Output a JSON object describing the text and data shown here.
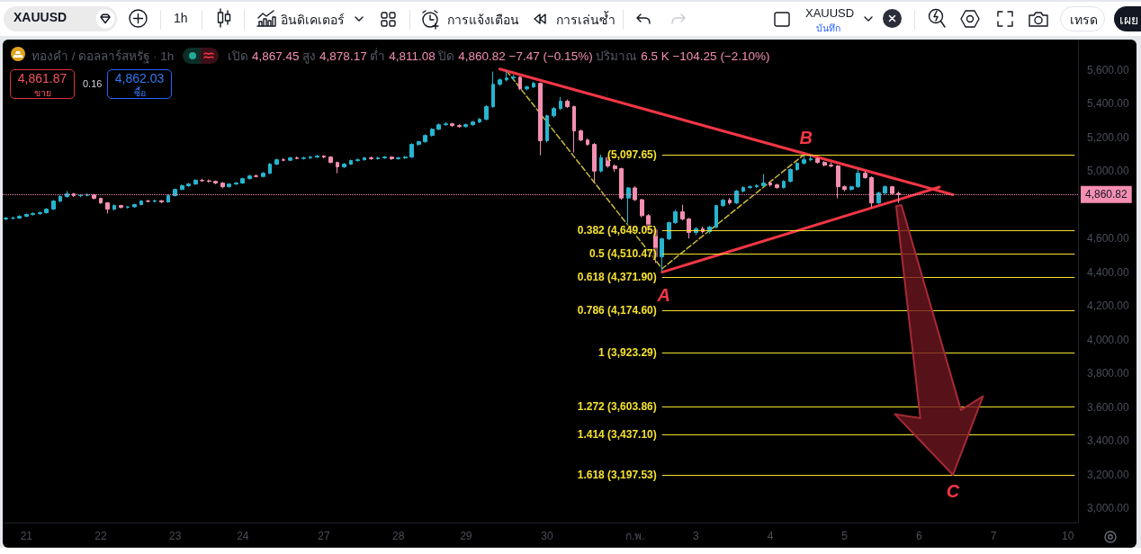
{
  "chart_data": {
    "type": "candlestick",
    "title": "ทองคำ / ดอลลาร์สหรัฐ · 1h",
    "subtitle": "เปิด 4,867.45 สูง 4,878.17 ต่ำ 4,811.08 ปิด 4,860.82 −7.47 (−0.15%) ปริมาณ 6.5 K −104.25 (−2.10%)",
    "categories": [
      null,
      null,
      null,
      "21",
      null,
      null,
      null,
      null,
      null,
      null,
      null,
      null,
      null,
      null,
      "22",
      null,
      null,
      null,
      null,
      null,
      null,
      null,
      null,
      null,
      null,
      "23",
      null,
      null,
      null,
      null,
      null,
      null,
      null,
      null,
      null,
      "24",
      null,
      null,
      null,
      null,
      null,
      null,
      null,
      null,
      null,
      null,
      null,
      "27",
      null,
      null,
      null,
      null,
      null,
      null,
      null,
      null,
      null,
      null,
      "28",
      null,
      null,
      null,
      null,
      null,
      null,
      null,
      null,
      null,
      "29",
      null,
      null,
      null,
      null,
      null,
      null,
      null,
      null,
      null,
      null,
      null,
      "30",
      null,
      null,
      null,
      null,
      null,
      null,
      null,
      null,
      null,
      null,
      null,
      null,
      "ก.พ.",
      null,
      null,
      null,
      null,
      null,
      null,
      null,
      null,
      "3",
      null,
      null,
      null,
      null,
      null,
      null,
      null,
      null,
      null,
      null,
      "4",
      null,
      null,
      null,
      null,
      null,
      null,
      null,
      null,
      null,
      null,
      "5",
      null,
      null,
      null,
      null,
      null,
      null,
      null,
      null,
      null,
      null,
      "6",
      null,
      null,
      null,
      null,
      null,
      null,
      null,
      null,
      null,
      null,
      "7",
      null,
      null,
      null,
      null,
      null,
      null,
      null,
      null,
      null,
      null,
      "10",
      null
    ],
    "ohlc": [
      [
        4716,
        4728,
        4708,
        4721
      ],
      [
        4721,
        4730,
        4712,
        4721
      ],
      [
        4721,
        4738,
        4716,
        4732
      ],
      [
        4732,
        4748,
        4726,
        4742
      ],
      [
        4742,
        4755,
        4736,
        4748
      ],
      [
        4748,
        4760,
        4740,
        4753
      ],
      [
        4753,
        4780,
        4748,
        4774
      ],
      [
        4774,
        4828,
        4770,
        4822
      ],
      [
        4822,
        4856,
        4815,
        4849
      ],
      [
        4849,
        4881,
        4842,
        4865
      ],
      [
        4865,
        4870,
        4846,
        4854
      ],
      [
        4854,
        4862,
        4845,
        4856
      ],
      [
        4856,
        4868,
        4850,
        4859
      ],
      [
        4859,
        4864,
        4832,
        4838
      ],
      [
        4838,
        4842,
        4805,
        4811
      ],
      [
        4811,
        4816,
        4748,
        4774
      ],
      [
        4774,
        4802,
        4766,
        4795
      ],
      [
        4795,
        4800,
        4778,
        4785
      ],
      [
        4785,
        4792,
        4778,
        4788
      ],
      [
        4788,
        4806,
        4782,
        4801
      ],
      [
        4801,
        4828,
        4796,
        4822
      ],
      [
        4822,
        4830,
        4814,
        4820
      ],
      [
        4820,
        4830,
        4813,
        4824
      ],
      [
        4824,
        4828,
        4810,
        4817
      ],
      [
        4817,
        4860,
        4812,
        4854
      ],
      [
        4854,
        4896,
        4850,
        4891
      ],
      [
        4891,
        4920,
        4886,
        4913
      ],
      [
        4913,
        4930,
        4906,
        4923
      ],
      [
        4923,
        4952,
        4918,
        4945
      ],
      [
        4945,
        4955,
        4936,
        4942
      ],
      [
        4942,
        4950,
        4932,
        4939
      ],
      [
        4939,
        4944,
        4922,
        4929
      ],
      [
        4929,
        4934,
        4898,
        4907
      ],
      [
        4907,
        4928,
        4902,
        4923
      ],
      [
        4923,
        4935,
        4918,
        4929
      ],
      [
        4929,
        4960,
        4924,
        4955
      ],
      [
        4955,
        4978,
        4950,
        4971
      ],
      [
        4971,
        4980,
        4962,
        4968
      ],
      [
        4968,
        4994,
        4962,
        4987
      ],
      [
        4987,
        5048,
        4982,
        5041
      ],
      [
        5041,
        5074,
        5036,
        5067
      ],
      [
        5067,
        5076,
        5058,
        5064
      ],
      [
        5064,
        5084,
        5060,
        5078
      ],
      [
        5078,
        5086,
        5070,
        5075
      ],
      [
        5075,
        5085,
        5068,
        5078
      ],
      [
        5078,
        5090,
        5072,
        5083
      ],
      [
        5083,
        5096,
        5078,
        5089
      ],
      [
        5089,
        5094,
        5076,
        5083
      ],
      [
        5083,
        5088,
        5046,
        5051
      ],
      [
        5051,
        5056,
        4987,
        5025
      ],
      [
        5025,
        5048,
        5018,
        5041
      ],
      [
        5041,
        5068,
        5036,
        5062
      ],
      [
        5062,
        5074,
        5056,
        5067
      ],
      [
        5067,
        5084,
        5062,
        5078
      ],
      [
        5078,
        5086,
        5066,
        5073
      ],
      [
        5073,
        5085,
        5068,
        5078
      ],
      [
        5078,
        5090,
        5072,
        5083
      ],
      [
        5083,
        5088,
        5066,
        5073
      ],
      [
        5073,
        5084,
        5068,
        5078
      ],
      [
        5078,
        5090,
        5072,
        5083
      ],
      [
        5083,
        5165,
        5078,
        5158
      ],
      [
        5158,
        5180,
        5150,
        5174
      ],
      [
        5174,
        5218,
        5168,
        5211
      ],
      [
        5211,
        5255,
        5205,
        5248
      ],
      [
        5248,
        5282,
        5242,
        5275
      ],
      [
        5275,
        5290,
        5268,
        5280
      ],
      [
        5280,
        5286,
        5262,
        5270
      ],
      [
        5270,
        5278,
        5256,
        5264
      ],
      [
        5264,
        5282,
        5258,
        5275
      ],
      [
        5275,
        5298,
        5268,
        5291
      ],
      [
        5291,
        5315,
        5284,
        5307
      ],
      [
        5307,
        5392,
        5300,
        5382
      ],
      [
        5382,
        5590,
        5375,
        5515
      ],
      [
        5515,
        5550,
        5505,
        5541
      ],
      [
        5541,
        5595,
        5532,
        5552
      ],
      [
        5552,
        5570,
        5540,
        5557
      ],
      [
        5557,
        5562,
        5480,
        5488
      ],
      [
        5488,
        5506,
        5478,
        5499
      ],
      [
        5499,
        5530,
        5492,
        5520
      ],
      [
        5520,
        5526,
        5094,
        5180
      ],
      [
        5180,
        5335,
        5170,
        5328
      ],
      [
        5328,
        5380,
        5318,
        5371
      ],
      [
        5371,
        5440,
        5362,
        5414
      ],
      [
        5414,
        5425,
        5374,
        5382
      ],
      [
        5382,
        5388,
        5110,
        5238
      ],
      [
        5238,
        5246,
        5176,
        5184
      ],
      [
        5184,
        5192,
        5150,
        5158
      ],
      [
        5158,
        5166,
        4934,
        5000
      ],
      [
        5000,
        5098,
        4992,
        5080
      ],
      [
        5080,
        5088,
        5020,
        5030
      ],
      [
        5030,
        5040,
        4996,
        5014
      ],
      [
        5014,
        5020,
        4830,
        4840
      ],
      [
        4840,
        4905,
        4690,
        4900
      ],
      [
        4900,
        4910,
        4822,
        4830
      ],
      [
        4830,
        4836,
        4726,
        4735
      ],
      [
        4735,
        4745,
        4636,
        4652
      ],
      [
        4652,
        4660,
        4455,
        4492
      ],
      [
        4492,
        4605,
        4405,
        4598
      ],
      [
        4598,
        4700,
        4590,
        4694
      ],
      [
        4694,
        4770,
        4686,
        4758
      ],
      [
        4758,
        4800,
        4708,
        4716
      ],
      [
        4716,
        4722,
        4600,
        4636
      ],
      [
        4636,
        4668,
        4620,
        4657
      ],
      [
        4657,
        4670,
        4630,
        4641
      ],
      [
        4641,
        4675,
        4628,
        4668
      ],
      [
        4668,
        4800,
        4660,
        4795
      ],
      [
        4795,
        4835,
        4786,
        4827
      ],
      [
        4827,
        4840,
        4800,
        4811
      ],
      [
        4811,
        4888,
        4804,
        4881
      ],
      [
        4881,
        4910,
        4874,
        4902
      ],
      [
        4902,
        4915,
        4895,
        4907
      ],
      [
        4907,
        4922,
        4900,
        4913
      ],
      [
        4913,
        4982,
        4906,
        4929
      ],
      [
        4929,
        4936,
        4908,
        4918
      ],
      [
        4918,
        4925,
        4895,
        4902
      ],
      [
        4902,
        4946,
        4896,
        4939
      ],
      [
        4939,
        5016,
        4932,
        5009
      ],
      [
        5009,
        5052,
        5002,
        5046
      ],
      [
        5046,
        5098,
        5040,
        5067
      ],
      [
        5067,
        5090,
        5058,
        5073
      ],
      [
        5073,
        5080,
        5044,
        5051
      ],
      [
        5051,
        5060,
        5028,
        5035
      ],
      [
        5035,
        5050,
        5022,
        5030
      ],
      [
        5030,
        5036,
        4838,
        4907
      ],
      [
        4907,
        4915,
        4880,
        4891
      ],
      [
        4891,
        4912,
        4884,
        4907
      ],
      [
        4907,
        5012,
        4900,
        4987
      ],
      [
        4987,
        5000,
        4954,
        4961
      ],
      [
        4961,
        4968,
        4785,
        4811
      ],
      [
        4811,
        4878,
        4804,
        4870
      ],
      [
        4870,
        4915,
        4862,
        4907
      ],
      [
        4907,
        4912,
        4860,
        4867
      ],
      [
        4867.45,
        4878.17,
        4811.08,
        4860.82
      ],
      null,
      null,
      null,
      null,
      null,
      null,
      null,
      null,
      null,
      null,
      null,
      null,
      null,
      null,
      null,
      null,
      null,
      null,
      null,
      null,
      null,
      null,
      null,
      null,
      null,
      null
    ],
    "colors": [
      "#26b5cf",
      "#26b5cf",
      "#26b5cf",
      "#26b5cf",
      "#26b5cf",
      "#26b5cf",
      "#26b5cf",
      "#26b5cf",
      "#26b5cf",
      "#26b5cf",
      "#f48fb1",
      "#26b5cf",
      "#26b5cf",
      "#f48fb1",
      "#f48fb1",
      "#f48fb1",
      "#26b5cf",
      "#f48fb1",
      "#26b5cf",
      "#26b5cf",
      "#26b5cf",
      "#f48fb1",
      "#26b5cf",
      "#f48fb1",
      "#26b5cf",
      "#26b5cf",
      "#26b5cf",
      "#26b5cf",
      "#26b5cf",
      "#f48fb1",
      "#f48fb1",
      "#f48fb1",
      "#f48fb1",
      "#26b5cf",
      "#26b5cf",
      "#26b5cf",
      "#26b5cf",
      "#f48fb1",
      "#26b5cf",
      "#26b5cf",
      "#26b5cf",
      "#f48fb1",
      "#26b5cf",
      "#f48fb1",
      "#26b5cf",
      "#26b5cf",
      "#26b5cf",
      "#f48fb1",
      "#f48fb1",
      "#f48fb1",
      "#26b5cf",
      "#26b5cf",
      "#26b5cf",
      "#26b5cf",
      "#f48fb1",
      "#26b5cf",
      "#26b5cf",
      "#f48fb1",
      "#26b5cf",
      "#26b5cf",
      "#26b5cf",
      "#26b5cf",
      "#26b5cf",
      "#26b5cf",
      "#26b5cf",
      "#26b5cf",
      "#f48fb1",
      "#f48fb1",
      "#26b5cf",
      "#26b5cf",
      "#26b5cf",
      "#26b5cf",
      "#26b5cf",
      "#26b5cf",
      "#26b5cf",
      "#26b5cf",
      "#f48fb1",
      "#26b5cf",
      "#26b5cf",
      "#f48fb1",
      "#26b5cf",
      "#26b5cf",
      "#26b5cf",
      "#f48fb1",
      "#f48fb1",
      "#f48fb1",
      "#f48fb1",
      "#f48fb1",
      "#26b5cf",
      "#f48fb1",
      "#f48fb1",
      "#f48fb1",
      "#26b5cf",
      "#f48fb1",
      "#f48fb1",
      "#f48fb1",
      "#f48fb1",
      "#26b5cf",
      "#26b5cf",
      "#26b5cf",
      "#f48fb1",
      "#f48fb1",
      "#26b5cf",
      "#f48fb1",
      "#26b5cf",
      "#26b5cf",
      "#26b5cf",
      "#f48fb1",
      "#26b5cf",
      "#26b5cf",
      "#26b5cf",
      "#26b5cf",
      "#26b5cf",
      "#f48fb1",
      "#f48fb1",
      "#26b5cf",
      "#26b5cf",
      "#26b5cf",
      "#26b5cf",
      "#26b5cf",
      "#f48fb1",
      "#f48fb1",
      "#f48fb1",
      "#f48fb1",
      "#f48fb1",
      "#26b5cf",
      "#26b5cf",
      "#f48fb1",
      "#f48fb1",
      "#26b5cf",
      "#26b5cf",
      "#f48fb1",
      "#f48fb1",
      null,
      null,
      null,
      null,
      null,
      null,
      null,
      null,
      null,
      null,
      null,
      null,
      null,
      null,
      null,
      null,
      null,
      null,
      null,
      null,
      null,
      null,
      null,
      null,
      null,
      null
    ],
    "series": [
      {
        "type": "line",
        "color": "#f23645",
        "line_style": "solid",
        "values": [
          null,
          null,
          null,
          null,
          null,
          null,
          null,
          null,
          null,
          null,
          null,
          null,
          null,
          null,
          null,
          null,
          null,
          null,
          null,
          null,
          null,
          null,
          null,
          null,
          null,
          null,
          null,
          null,
          null,
          null,
          null,
          null,
          null,
          null,
          null,
          null,
          null,
          null,
          null,
          null,
          null,
          null,
          null,
          null,
          null,
          null,
          null,
          null,
          null,
          null,
          null,
          null,
          null,
          null,
          null,
          null,
          null,
          null,
          null,
          null,
          null,
          null,
          null,
          null,
          null,
          null,
          null,
          null,
          null,
          null,
          null,
          null,
          null,
          5605,
          null,
          null,
          null,
          null,
          null,
          null,
          null,
          null,
          null,
          null,
          null,
          null,
          null,
          null,
          null,
          null,
          null,
          null,
          null,
          null,
          null,
          null,
          null,
          null,
          null,
          null,
          null,
          null,
          null,
          null,
          null,
          null,
          null,
          null,
          null,
          null,
          null,
          null,
          null,
          null,
          null,
          null,
          null,
          null,
          null,
          null,
          null,
          null,
          null,
          null,
          null,
          null,
          null,
          null,
          null,
          null,
          null,
          null,
          null,
          null,
          null,
          null,
          null,
          null,
          null,
          null,
          4860,
          null,
          null,
          null,
          null,
          null,
          null,
          null,
          null,
          null,
          null,
          null,
          null,
          null,
          null,
          null,
          null,
          null,
          null
        ]
      },
      {
        "type": "line",
        "color": "#f23645",
        "line_style": "solid",
        "values": [
          null,
          null,
          null,
          null,
          null,
          null,
          null,
          null,
          null,
          null,
          null,
          null,
          null,
          null,
          null,
          null,
          null,
          null,
          null,
          null,
          null,
          null,
          null,
          null,
          null,
          null,
          null,
          null,
          null,
          null,
          null,
          null,
          null,
          null,
          null,
          null,
          null,
          null,
          null,
          null,
          null,
          null,
          null,
          null,
          null,
          null,
          null,
          null,
          null,
          null,
          null,
          null,
          null,
          null,
          null,
          null,
          null,
          null,
          null,
          null,
          null,
          null,
          null,
          null,
          null,
          null,
          null,
          null,
          null,
          null,
          null,
          null,
          null,
          null,
          null,
          null,
          null,
          null,
          null,
          null,
          null,
          null,
          null,
          null,
          null,
          null,
          null,
          null,
          null,
          null,
          null,
          null,
          null,
          null,
          null,
          null,
          null,
          4400,
          null,
          null,
          null,
          null,
          null,
          null,
          null,
          null,
          null,
          null,
          null,
          null,
          null,
          null,
          null,
          null,
          null,
          null,
          null,
          null,
          null,
          null,
          null,
          null,
          null,
          null,
          null,
          null,
          null,
          null,
          null,
          null,
          null,
          null,
          null,
          null,
          null,
          null,
          null,
          null,
          4905,
          null,
          null,
          null,
          null,
          null,
          null,
          null,
          null,
          null,
          null,
          null,
          null,
          null,
          null,
          null,
          null,
          null,
          null,
          null,
          null
        ]
      },
      {
        "type": "line",
        "color": "#c9b93a",
        "line_style": "dashed",
        "values": [
          null,
          null,
          null,
          null,
          null,
          null,
          null,
          null,
          null,
          null,
          null,
          null,
          null,
          null,
          null,
          null,
          null,
          null,
          null,
          null,
          null,
          null,
          null,
          null,
          null,
          null,
          null,
          null,
          null,
          null,
          null,
          null,
          null,
          null,
          null,
          null,
          null,
          null,
          null,
          null,
          null,
          null,
          null,
          null,
          null,
          null,
          null,
          null,
          null,
          null,
          null,
          null,
          null,
          null,
          null,
          null,
          null,
          null,
          null,
          null,
          null,
          null,
          null,
          null,
          null,
          null,
          null,
          null,
          null,
          null,
          null,
          null,
          null,
          null,
          5595,
          null,
          null,
          null,
          null,
          null,
          null,
          null,
          null,
          null,
          null,
          null,
          null,
          null,
          null,
          null,
          null,
          null,
          null,
          null,
          null,
          null,
          null,
          4421,
          null,
          null,
          null,
          null,
          null,
          null,
          null,
          null,
          null,
          null,
          null,
          null,
          null,
          null,
          null,
          null,
          null,
          null,
          null,
          null,
          5098,
          null,
          null,
          null,
          null,
          null,
          null,
          null,
          null,
          null,
          null,
          null,
          null,
          null,
          null,
          null,
          null,
          null,
          null,
          null,
          null,
          null,
          null,
          null,
          null,
          null,
          null,
          null,
          null,
          null,
          null,
          null,
          null,
          null,
          null,
          null,
          null,
          null,
          null,
          null,
          null
        ]
      }
    ],
    "ylim": [
      2915,
      5780
    ],
    "yticks": [
      {
        "value": 3000,
        "label": "3,000.00"
      },
      {
        "value": 3200,
        "label": "3,200.00"
      },
      {
        "value": 3400,
        "label": "3,400.00"
      },
      {
        "value": 3600,
        "label": "3,600.00"
      },
      {
        "value": 3800,
        "label": "3,800.00"
      },
      {
        "value": 4000,
        "label": "4,000.00"
      },
      {
        "value": 4200,
        "label": "4,200.00"
      },
      {
        "value": 4400,
        "label": "4,400.00"
      },
      {
        "value": 4600,
        "label": "4,600.00"
      },
      {
        "value": 5000,
        "label": "5,000.00"
      },
      {
        "value": 5200,
        "label": "5,200.00"
      },
      {
        "value": 5400,
        "label": "5,400.00"
      },
      {
        "value": 5600,
        "label": "5,600.00"
      }
    ],
    "ref_lines": [
      {
        "axis": "y",
        "value": 5097.65,
        "label": "(5,097.65)",
        "color": "#f5e130"
      },
      {
        "axis": "y",
        "value": 4649.05,
        "label": "0.382 (4,649.05)",
        "color": "#f5e130"
      },
      {
        "axis": "y",
        "value": 4510.47,
        "label": "0.5 (4,510.47)",
        "color": "#f5e130"
      },
      {
        "axis": "y",
        "value": 4371.9,
        "label": "0.618 (4,371.90)",
        "color": "#f5e130"
      },
      {
        "axis": "y",
        "value": 4174.6,
        "label": "0.786 (4,174.60)",
        "color": "#f5e130"
      },
      {
        "axis": "y",
        "value": 3923.29,
        "label": "1 (3,923.29)",
        "color": "#f5e130"
      },
      {
        "axis": "y",
        "value": 3603.86,
        "label": "1.272 (3,603.86)",
        "color": "#f5e130"
      },
      {
        "axis": "y",
        "value": 3437.1,
        "label": "1.414 (3,437.10)",
        "color": "#f5e130"
      },
      {
        "axis": "y",
        "value": 3197.53,
        "label": "1.618 (3,197.53)",
        "color": "#f5e130"
      },
      {
        "axis": "y",
        "value": 4860.82,
        "label": "4,860.82",
        "color": "#f48fb1",
        "line_style": "dotted"
      }
    ],
    "annotations": [
      "XAUUSD",
      "1h",
      "อินดิเคเตอร์",
      "การแจ้งเตือน",
      "การเล่นซ้ำ",
      "XAUUSD",
      "บันทึก",
      "เทรด",
      "เผย",
      "4,861.87",
      "ขาย",
      "0.16",
      "4,862.03",
      "ซื้อ",
      {
        "text": "A",
        "y": 4405
      },
      {
        "text": "B",
        "y": 5098
      },
      {
        "text": "C",
        "y": 3197.53
      }
    ]
  }
}
